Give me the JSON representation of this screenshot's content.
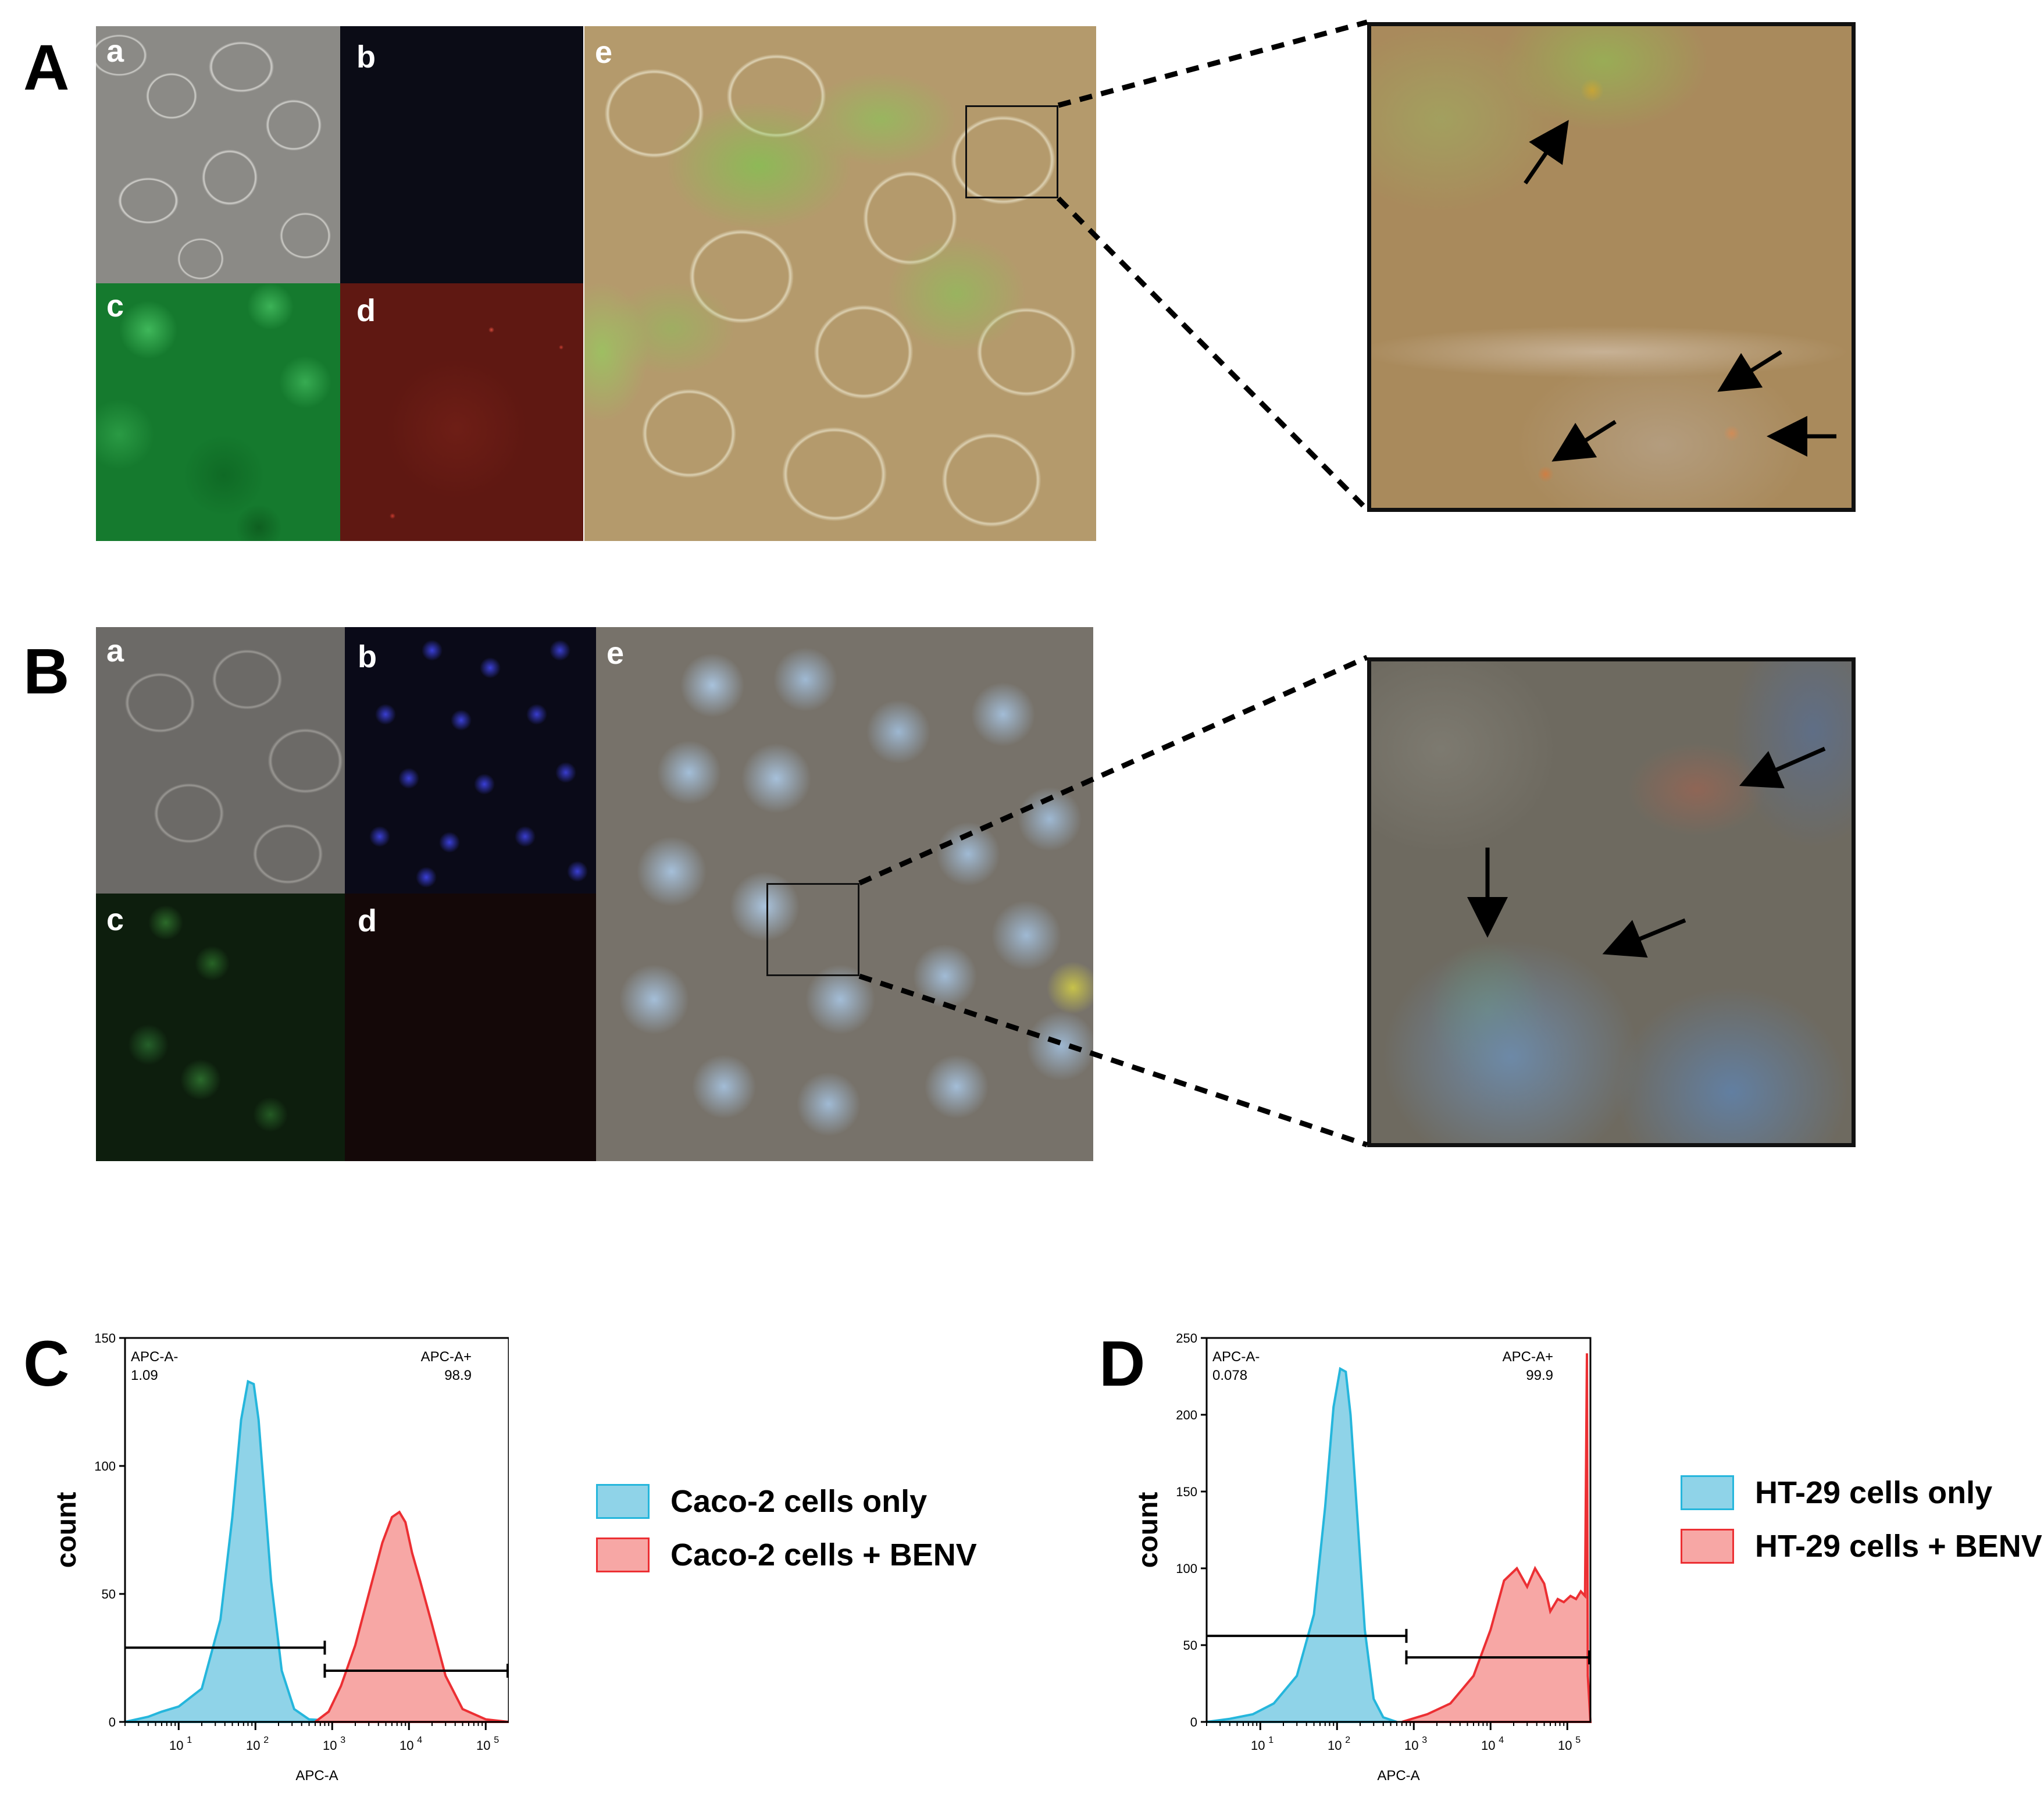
{
  "panels": {
    "A": {
      "label": "A",
      "subpanels": [
        "a",
        "b",
        "c",
        "d",
        "e"
      ]
    },
    "B": {
      "label": "B",
      "subpanels": [
        "a",
        "b",
        "c",
        "d",
        "e"
      ]
    },
    "C": {
      "label": "C",
      "ylabel": "count",
      "xlabel": "APC-A",
      "gate_neg_label": "APC-A-",
      "gate_neg_value": "1.09",
      "gate_pos_label": "APC-A+",
      "gate_pos_value": "98.9",
      "legend": [
        {
          "label": "Caco-2 cells only",
          "color": "#8fd3e8",
          "edge": "#25b6dc"
        },
        {
          "label": "Caco-2 cells + BENV",
          "color": "#f7a7a5",
          "edge": "#ec2f33"
        }
      ]
    },
    "D": {
      "label": "D",
      "ylabel": "count",
      "xlabel": "APC-A",
      "gate_neg_label": "APC-A-",
      "gate_neg_value": "0.078",
      "gate_pos_label": "APC-A+",
      "gate_pos_value": "99.9",
      "legend": [
        {
          "label": "HT-29 cells only",
          "color": "#8fd3e8",
          "edge": "#25b6dc"
        },
        {
          "label": "HT-29 cells + BENV",
          "color": "#f7a7a5",
          "edge": "#ec2f33"
        }
      ]
    }
  },
  "chart_data": [
    {
      "type": "area",
      "panel": "C",
      "xlabel": "APC-A",
      "ylabel": "count",
      "xscale": "log",
      "xlim": [
        2,
        200000
      ],
      "ylim": [
        0,
        150
      ],
      "yticks": [
        0,
        50,
        100,
        150
      ],
      "xticks": [
        "10^1",
        "10^2",
        "10^3",
        "10^4",
        "10^5"
      ],
      "gates": [
        {
          "label": "APC-A-",
          "value": "1.09",
          "from": 2,
          "to": 800
        },
        {
          "label": "APC-A+",
          "value": "98.9",
          "from": 800,
          "to": 200000
        }
      ],
      "series": [
        {
          "name": "Caco-2 cells only",
          "x": [
            2,
            4,
            6,
            10,
            20,
            35,
            50,
            65,
            80,
            95,
            110,
            130,
            160,
            220,
            320,
            500,
            2000
          ],
          "y": [
            0,
            2,
            4,
            6,
            13,
            40,
            80,
            118,
            133,
            132,
            118,
            90,
            55,
            20,
            5,
            1,
            0
          ]
        },
        {
          "name": "Caco-2 cells + BENV",
          "x": [
            600,
            900,
            1300,
            2000,
            3000,
            4500,
            6000,
            7500,
            9000,
            11000,
            14000,
            20000,
            30000,
            50000,
            100000,
            200000
          ],
          "y": [
            0,
            4,
            14,
            30,
            50,
            70,
            80,
            82,
            78,
            66,
            55,
            38,
            18,
            5,
            1,
            0
          ]
        }
      ]
    },
    {
      "type": "area",
      "panel": "D",
      "xlabel": "APC-A",
      "ylabel": "count",
      "xscale": "log",
      "xlim": [
        2,
        200000
      ],
      "ylim": [
        0,
        250
      ],
      "yticks": [
        0,
        50,
        100,
        150,
        200,
        250
      ],
      "xticks": [
        "10^1",
        "10^2",
        "10^3",
        "10^4",
        "10^5"
      ],
      "gates": [
        {
          "label": "APC-A-",
          "value": "0.078",
          "from": 2,
          "to": 800
        },
        {
          "label": "APC-A+",
          "value": "99.9",
          "from": 800,
          "to": 200000
        }
      ],
      "series": [
        {
          "name": "HT-29 cells only",
          "x": [
            2,
            4,
            8,
            15,
            30,
            50,
            70,
            90,
            110,
            130,
            150,
            180,
            230,
            300,
            400,
            600
          ],
          "y": [
            0,
            2,
            5,
            12,
            30,
            70,
            140,
            205,
            230,
            228,
            200,
            140,
            60,
            15,
            3,
            0
          ]
        },
        {
          "name": "HT-29 cells + BENV",
          "x": [
            700,
            1500,
            3000,
            6000,
            10000,
            15000,
            22000,
            30000,
            38000,
            50000,
            60000,
            75000,
            90000,
            110000,
            130000,
            150000,
            170000,
            180000,
            185000,
            200000
          ],
          "y": [
            0,
            5,
            12,
            30,
            60,
            92,
            100,
            88,
            100,
            90,
            72,
            80,
            78,
            82,
            80,
            85,
            82,
            240,
            30,
            0
          ]
        }
      ]
    }
  ]
}
